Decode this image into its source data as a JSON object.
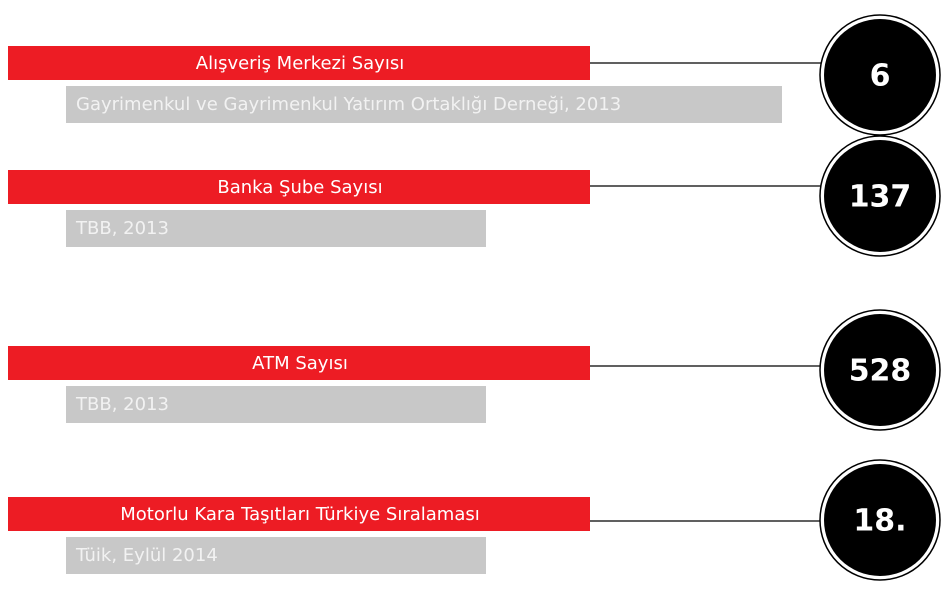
{
  "items": [
    {
      "label": "Alışveriş Merkezi Sayısı",
      "source": "Gayrimenkul ve Gayrimenkul Yatırım Ortaklığı Derneği, 2013",
      "value": 6
    },
    {
      "label": "Banka Şube Sayısı",
      "source": "TBB, 2013",
      "value": 137
    },
    {
      "label": "ATM Sayısı",
      "source": "TBB, 2013",
      "value": 528
    },
    {
      "label": "Motorlu Kara Taşıtları Türkiye Sıralaması",
      "source": "Tüik, Eylül 2014",
      "value": "18."
    }
  ]
}
